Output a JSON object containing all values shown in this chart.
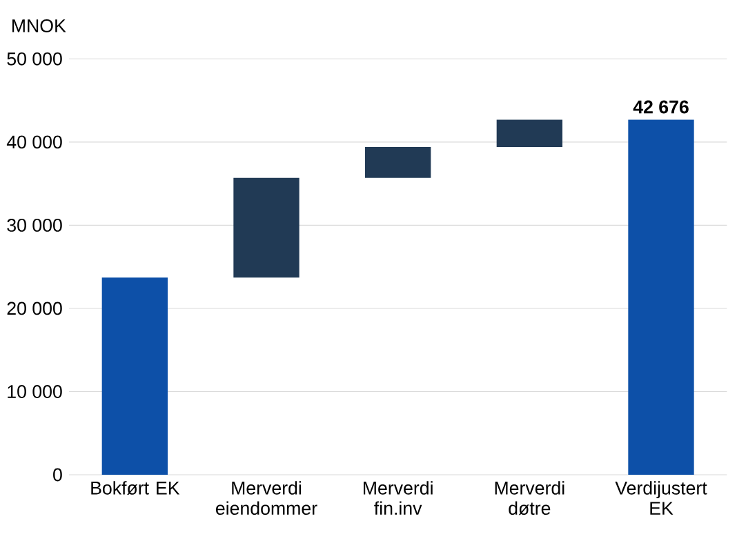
{
  "chart_data": {
    "type": "bar",
    "ylabel": "MNOK",
    "categories": [
      "Bokført EK",
      "Merverdi eiendommer",
      "Merverdi fin.inv",
      "Merverdi døtre",
      "Verdijustert EK"
    ],
    "values": [
      23700,
      12000,
      3700,
      3276,
      42676
    ],
    "base": [
      0,
      23700,
      35700,
      39400,
      0
    ],
    "colors": [
      "#0d50a8",
      "#213a55",
      "#213a55",
      "#213a55",
      "#0d50a8"
    ],
    "value_labels": [
      null,
      null,
      null,
      null,
      "42 676"
    ],
    "ylim": [
      0,
      50000
    ],
    "yticks": [
      {
        "value": 0,
        "label": "0"
      },
      {
        "value": 10000,
        "label": "10 000"
      },
      {
        "value": 20000,
        "label": "20 000"
      },
      {
        "value": 30000,
        "label": "30 000"
      },
      {
        "value": 40000,
        "label": "40 000"
      },
      {
        "value": 50000,
        "label": "50 000"
      }
    ],
    "grid": "y"
  }
}
